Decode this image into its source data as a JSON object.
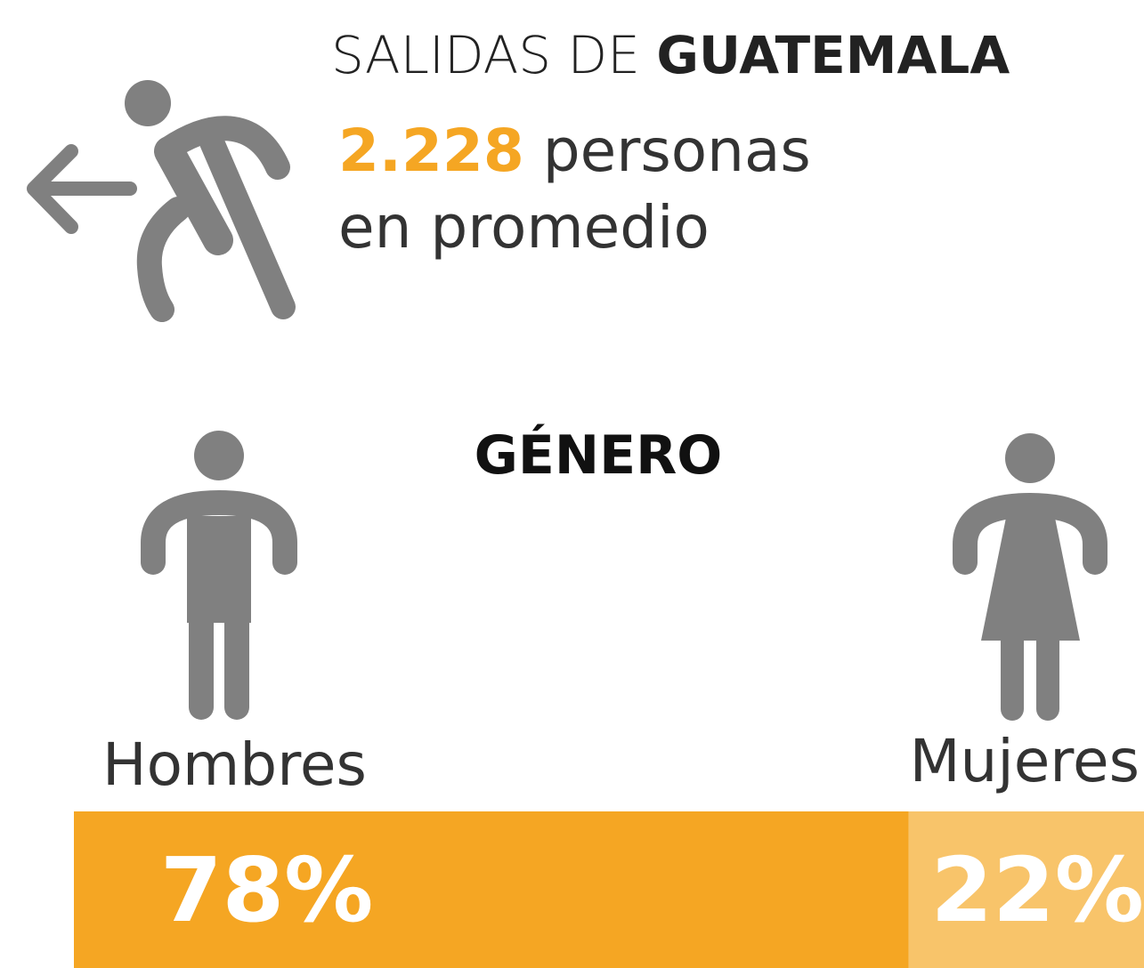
{
  "header": {
    "title_light": "SALIDAS DE",
    "title_bold": "GUATEMALA",
    "count": "2.228",
    "count_text": "personas",
    "count_note": "en promedio"
  },
  "gender": {
    "title": "GÉNERO",
    "categories": [
      "Hombres",
      "Mujeres"
    ],
    "values": [
      78,
      22
    ],
    "value_labels": [
      "78%",
      "22%"
    ],
    "colors": [
      "#f5a623",
      "#f8c46a"
    ]
  }
}
